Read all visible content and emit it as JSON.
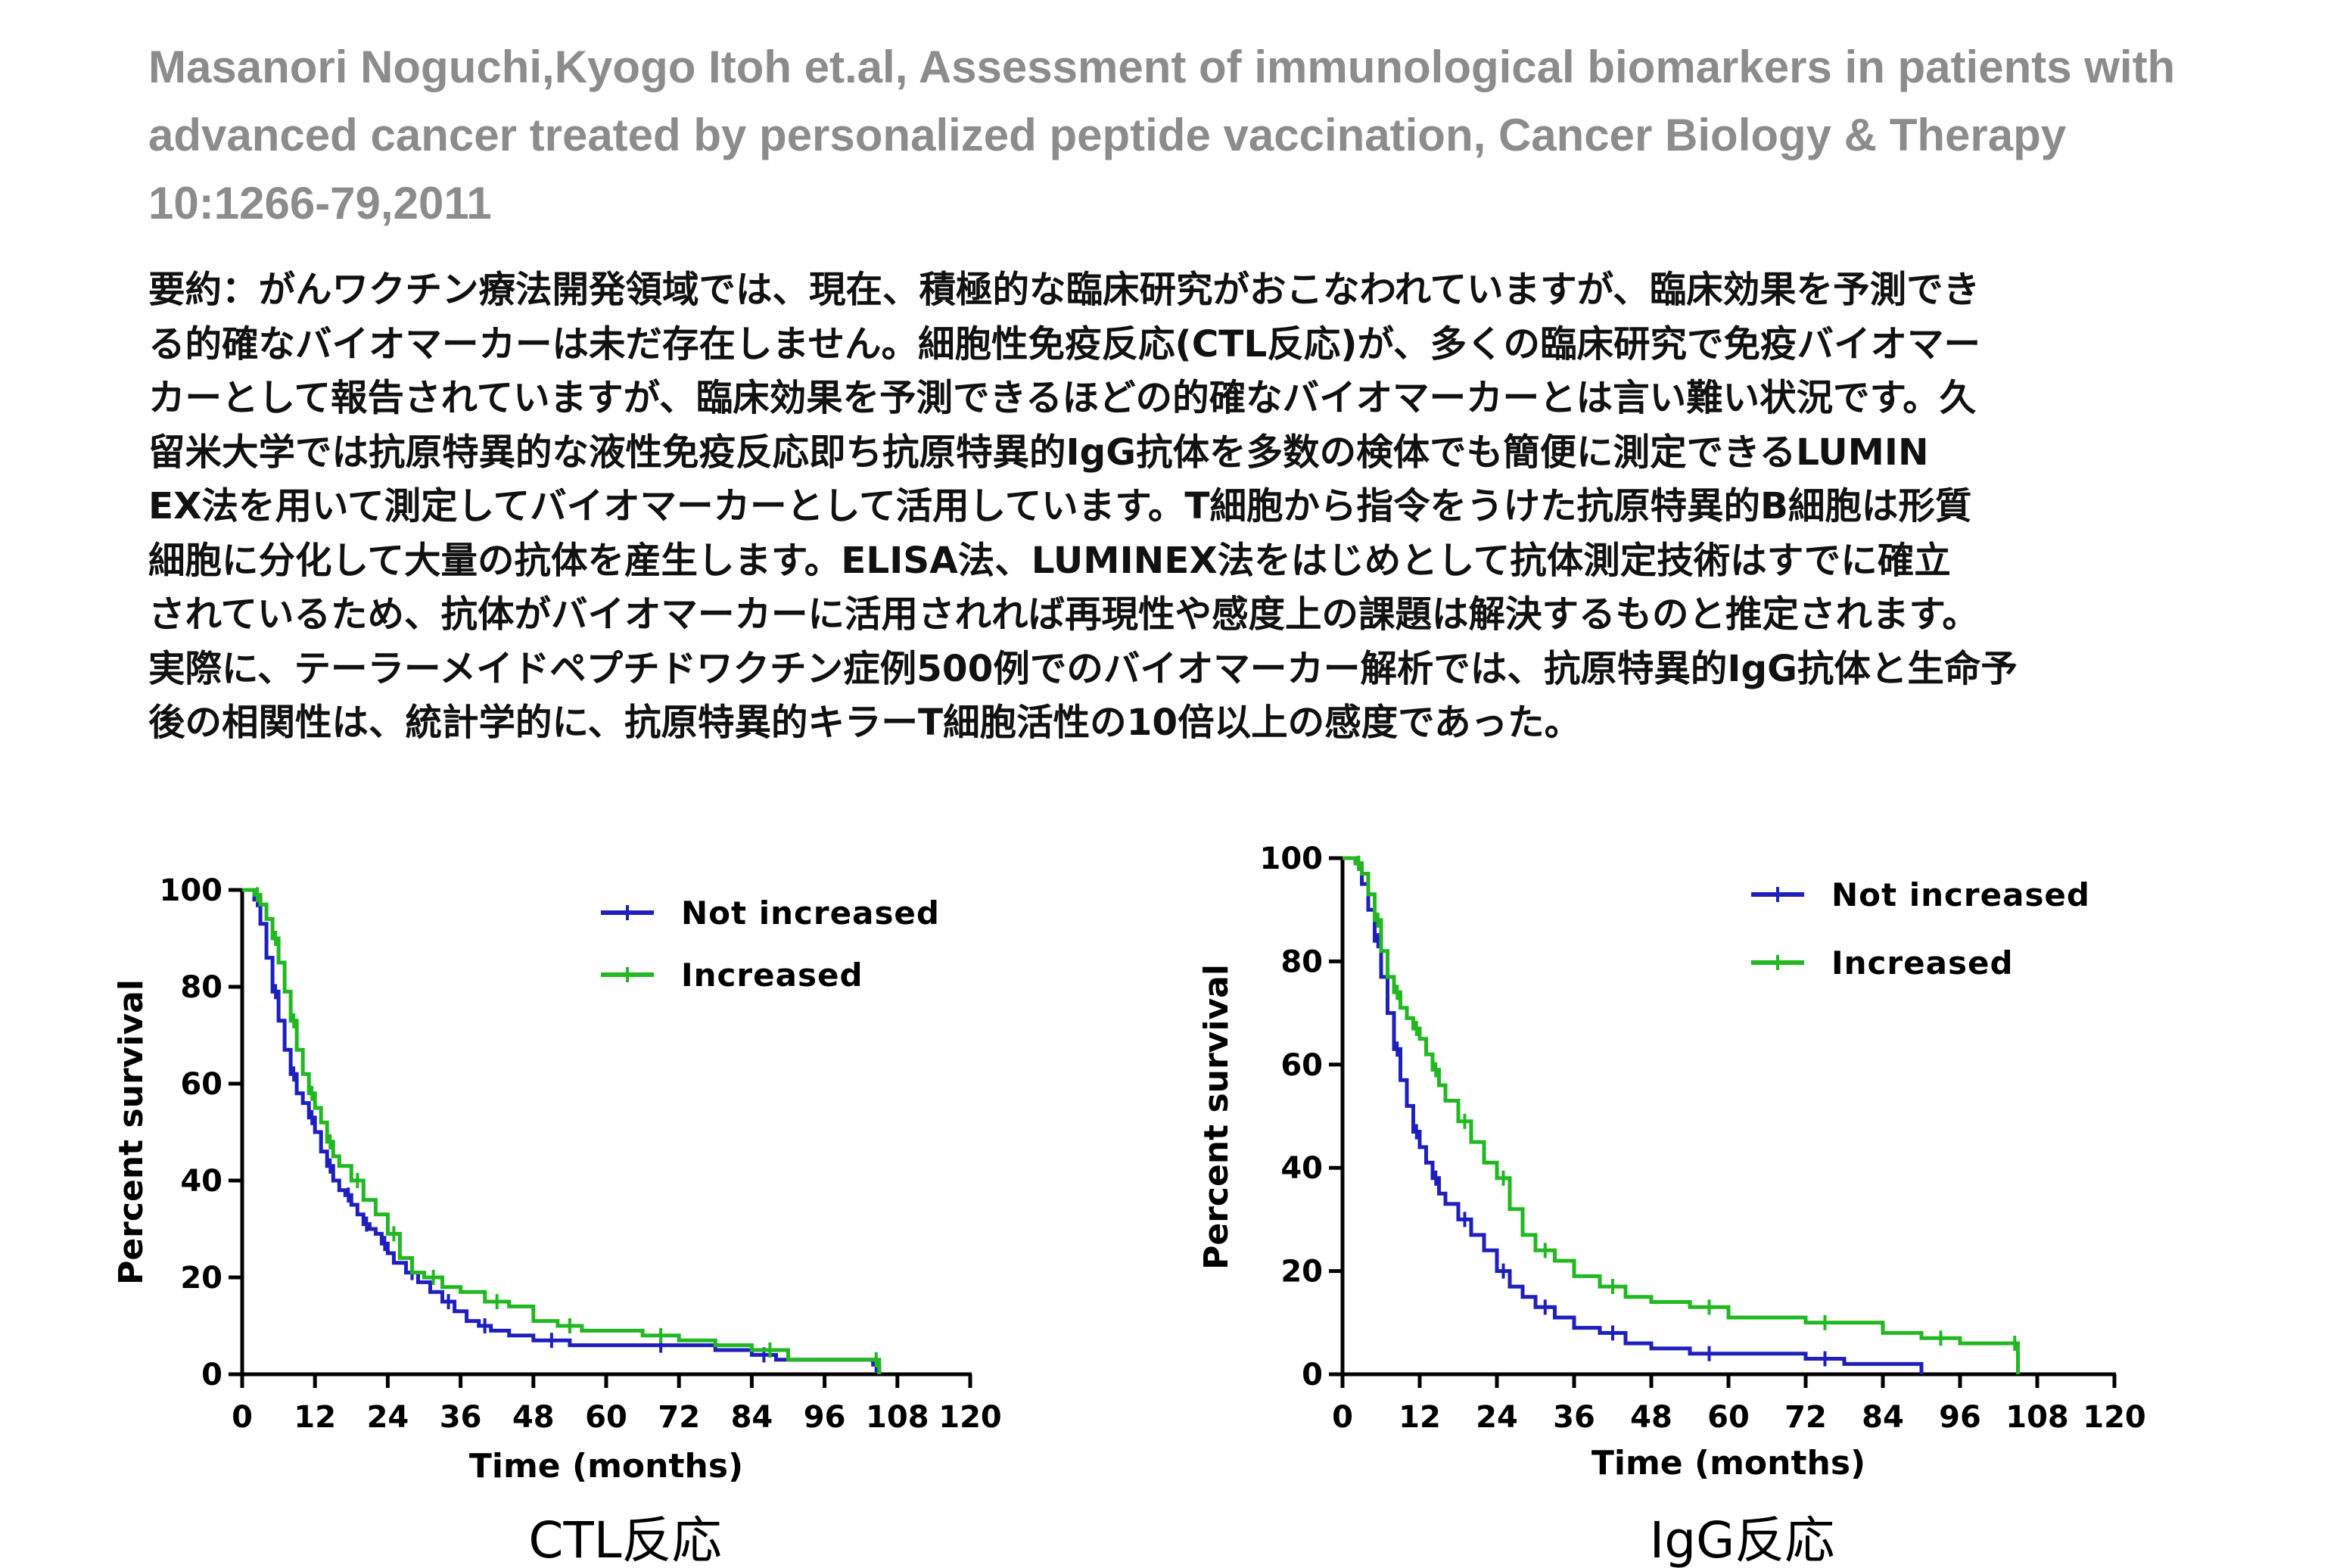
{
  "citation": "Masanori Noguchi,Kyogo Itoh et.al, Assessment of immunological biomarkers in patients with advanced cancer treated by personalized peptide vaccination, Cancer Biology & Therapy 10:1266-79,2011",
  "summary_lines": [
    "要約：がんワクチン療法開発領域では、現在、積極的な臨床研究がおこなわれていますが、臨床効果を予測でき",
    "る的確なバイオマーカーは未だ存在しません。細胞性免疫反応(CTL反応)が、多くの臨床研究で免疫バイオマー",
    "カーとして報告されていますが、臨床効果を予測できるほどの的確なバイオマーカーとは言い難い状況です。久",
    "留米大学では抗原特異的な液性免疫反応即ち抗原特異的IgG抗体を多数の検体でも簡便に測定できるLUMIN",
    "EX法を用いて測定してバイオマーカーとして活用しています。T細胞から指令をうけた抗原特異的B細胞は形質",
    "細胞に分化して大量の抗体を産生します。ELISA法、LUMINEX法をはじめとして抗体測定技術はすでに確立",
    "されているため、抗体がバイオマーカーに活用されれば再現性や感度上の課題は解決するものと推定されます。",
    "実際に、テーラーメイドペプチドワクチン症例500例でのバイオマーカー解析では、抗原特異的IgG抗体と生命予",
    "後の相関性は、統計学的に、抗原特異的キラーT細胞活性の10倍以上の感度であった。"
  ],
  "chart_data": [
    {
      "type": "line",
      "step": true,
      "caption": "CTL反応",
      "xlabel": "Time (months)",
      "ylabel": "Percent survival",
      "xlim": [
        0,
        120
      ],
      "ylim": [
        0,
        100
      ],
      "xticks": [
        "0",
        "12",
        "24",
        "36",
        "48",
        "60",
        "72",
        "84",
        "96",
        "108",
        "120"
      ],
      "yticks": [
        "0",
        "20",
        "40",
        "60",
        "80",
        "100"
      ],
      "legend_position": "top-right",
      "series": [
        {
          "name": "Not increased",
          "color": "#1f1fbf",
          "x": [
            0,
            2,
            3,
            4,
            5,
            6,
            7,
            8,
            9,
            10,
            11,
            12,
            13,
            14,
            15,
            16,
            17,
            18,
            19,
            20,
            21,
            22,
            23,
            24,
            25,
            27,
            29,
            31,
            33,
            35,
            37,
            39,
            41,
            44,
            48,
            54,
            60,
            66,
            72,
            78,
            84,
            88,
            96,
            104,
            105
          ],
          "y": [
            100,
            98,
            93,
            86,
            79,
            73,
            67,
            62,
            58,
            56,
            53,
            50,
            46,
            43,
            40,
            38,
            37,
            35,
            33,
            31,
            30,
            29,
            27,
            25,
            23,
            21,
            19,
            17,
            15,
            13,
            11,
            10,
            9,
            8,
            7,
            6,
            6,
            6,
            6,
            5,
            4,
            3,
            3,
            2,
            0
          ]
        },
        {
          "name": "Increased",
          "color": "#22b822",
          "x": [
            0,
            2,
            3,
            4,
            5,
            6,
            7,
            8,
            9,
            10,
            11,
            12,
            13,
            14,
            15,
            16,
            18,
            20,
            22,
            24,
            26,
            28,
            30,
            33,
            36,
            40,
            44,
            48,
            52,
            56,
            60,
            66,
            72,
            78,
            84,
            90,
            96,
            104,
            105
          ],
          "y": [
            100,
            99,
            97,
            94,
            90,
            85,
            79,
            73,
            67,
            62,
            58,
            55,
            52,
            48,
            45,
            43,
            40,
            36,
            33,
            29,
            24,
            21,
            20,
            18,
            17,
            15,
            14,
            11,
            10,
            9,
            9,
            8,
            7,
            6,
            5,
            3,
            3,
            3,
            0
          ]
        }
      ]
    },
    {
      "type": "line",
      "step": true,
      "caption": "IgG反応",
      "xlabel": "Time (months)",
      "ylabel": "Percent survival",
      "xlim": [
        0,
        120
      ],
      "ylim": [
        0,
        100
      ],
      "xticks": [
        "0",
        "12",
        "24",
        "36",
        "48",
        "60",
        "72",
        "84",
        "96",
        "108",
        "120"
      ],
      "yticks": [
        "0",
        "20",
        "40",
        "60",
        "80",
        "100"
      ],
      "legend_position": "top-right",
      "series": [
        {
          "name": "Not increased",
          "color": "#1f1fbf",
          "x": [
            0,
            2,
            3,
            4,
            5,
            6,
            7,
            8,
            9,
            10,
            11,
            12,
            13,
            14,
            15,
            16,
            18,
            20,
            22,
            24,
            26,
            28,
            30,
            33,
            36,
            40,
            44,
            48,
            54,
            60,
            66,
            72,
            78,
            84,
            90
          ],
          "y": [
            100,
            99,
            95,
            90,
            84,
            77,
            70,
            63,
            57,
            52,
            47,
            44,
            41,
            38,
            35,
            33,
            30,
            27,
            24,
            20,
            17,
            15,
            13,
            11,
            9,
            8,
            6,
            5,
            4,
            4,
            4,
            3,
            2,
            2,
            0
          ]
        },
        {
          "name": "Increased",
          "color": "#22b822",
          "x": [
            0,
            2,
            3,
            4,
            5,
            6,
            7,
            8,
            9,
            10,
            11,
            12,
            13,
            14,
            15,
            16,
            18,
            20,
            22,
            24,
            26,
            28,
            30,
            33,
            36,
            40,
            44,
            48,
            54,
            60,
            66,
            72,
            78,
            84,
            90,
            96,
            102,
            104,
            105
          ],
          "y": [
            100,
            99,
            97,
            93,
            88,
            82,
            77,
            74,
            71,
            69,
            67,
            65,
            62,
            59,
            56,
            53,
            49,
            45,
            41,
            38,
            32,
            27,
            24,
            22,
            19,
            17,
            15,
            14,
            13,
            11,
            11,
            10,
            10,
            8,
            7,
            6,
            6,
            6,
            0
          ]
        }
      ]
    }
  ]
}
